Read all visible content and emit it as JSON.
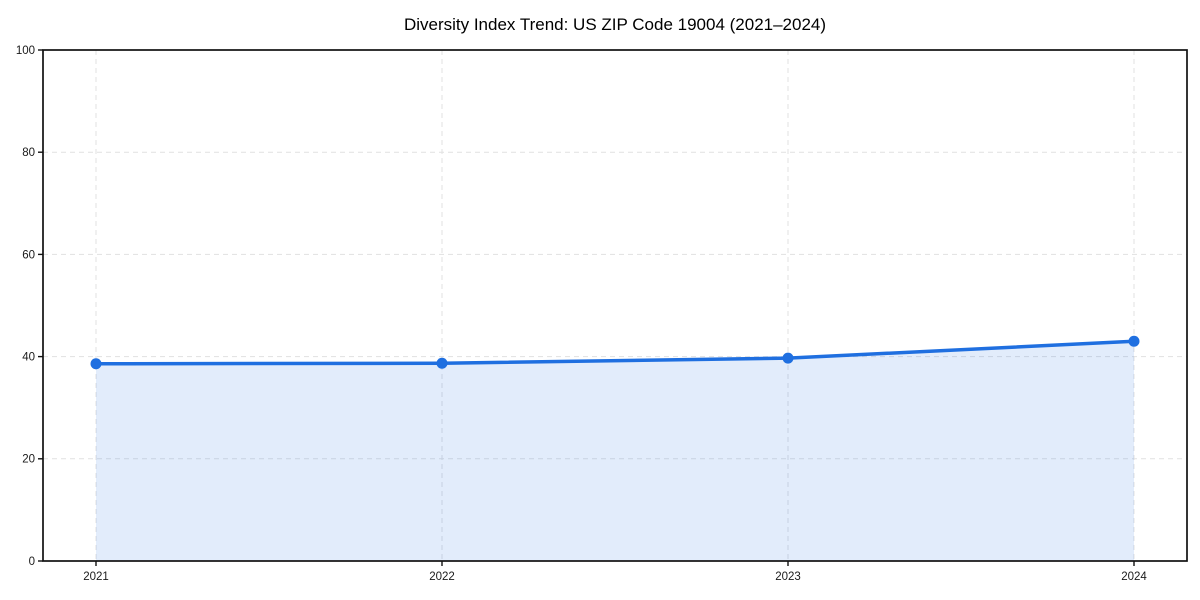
{
  "chart_data": {
    "type": "line",
    "title": "Diversity Index Trend: US ZIP Code 19004 (2021–2024)",
    "categories": [
      "2021",
      "2022",
      "2023",
      "2024"
    ],
    "series": [
      {
        "name": "Diversity Index",
        "values": [
          38.6,
          38.7,
          39.7,
          43.0
        ]
      }
    ],
    "xlabel": "",
    "ylabel": "",
    "ylim": [
      0,
      100
    ],
    "yticks": [
      0,
      20,
      40,
      60,
      80,
      100
    ],
    "grid": true,
    "grid_style": "dashed",
    "legend_position": "none",
    "area_fill": true,
    "colors": {
      "line": "#1f6fe0",
      "marker": "#1f6fe0",
      "area": "rgba(31, 111, 224, 0.13)",
      "grid": "#e1e1e1",
      "spine": "#111111",
      "title": "#000000",
      "tick_label": "#1a1a1a",
      "background": "#ffffff"
    }
  }
}
